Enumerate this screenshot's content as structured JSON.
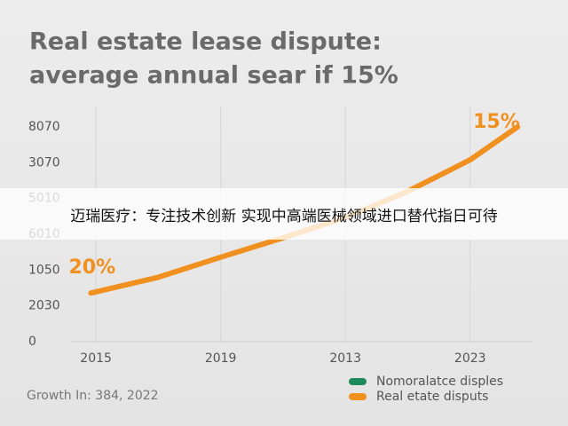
{
  "chart_data": {
    "type": "line",
    "title": [
      "Real estate lease dispute:",
      "average annual sear if 15%"
    ],
    "footnote": "Growth In: 384, 2022",
    "x": [
      -0.04,
      0.5,
      1,
      1.5,
      2,
      2.5,
      3,
      3.38
    ],
    "xlim": [
      -0.2,
      3.5
    ],
    "xticks": [
      {
        "value": 0,
        "label": "2015"
      },
      {
        "value": 1,
        "label": "2019"
      },
      {
        "value": 2,
        "label": "2013"
      },
      {
        "value": 3,
        "label": "2023"
      }
    ],
    "ylim": [
      0,
      6.4
    ],
    "yticks": [
      {
        "value": 0,
        "label": "0"
      },
      {
        "value": 1,
        "label": "2030"
      },
      {
        "value": 2,
        "label": "1050"
      },
      {
        "value": 3,
        "label": "6010"
      },
      {
        "value": 4,
        "label": "5010"
      },
      {
        "value": 5,
        "label": "3070"
      },
      {
        "value": 6,
        "label": "8070"
      }
    ],
    "series": [
      {
        "name": "Nomoralatce disples",
        "color": "#1e8a5c",
        "values": [
          null,
          null,
          null,
          null,
          null,
          null,
          null,
          null
        ]
      },
      {
        "name": "Real etate disputs",
        "color": "#f0901e",
        "values": [
          1.36,
          1.8,
          2.36,
          2.9,
          3.47,
          4.2,
          5.08,
          6.0
        ]
      }
    ],
    "annotations": [
      "20%",
      "15%"
    ],
    "legend": "bottom-right",
    "grid": true
  },
  "banner": {
    "text": "迈瑞医疗：专注技术创新 实现中高端医械领域进口替代指日可待"
  }
}
